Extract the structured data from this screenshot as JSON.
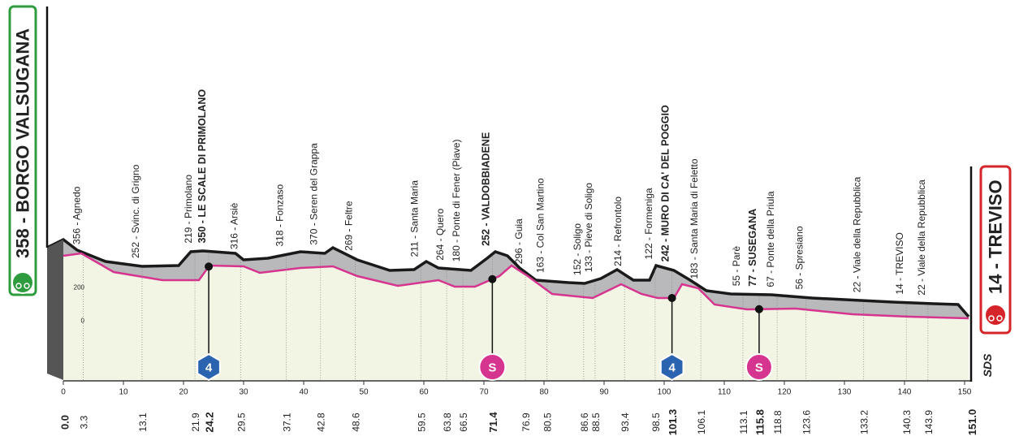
{
  "start": {
    "label": "358 - BORGO VALSUGANA",
    "km": "0.0"
  },
  "finish": {
    "label": "14 - TREVISO",
    "km": "151.0"
  },
  "waypoints": [
    {
      "label": "356 - Agnedo",
      "km": "3.3"
    },
    {
      "label": "252 - Svinc. di Grigno",
      "km": "13.1"
    },
    {
      "label": "219 - Primolano",
      "km": "21.9"
    },
    {
      "label": "350 - LE SCALE DI PRIMOLANO",
      "km": "24.2",
      "badge": {
        "text": "4",
        "color": "#2a63b0"
      }
    },
    {
      "label": "316 - Arsiè",
      "km": "29.5"
    },
    {
      "label": "318 - Fonzaso",
      "km": "37.1"
    },
    {
      "label": "370 - Seren del Grappa",
      "km": "42.8"
    },
    {
      "label": "269 - Feltre",
      "km": "48.6"
    },
    {
      "label": "211 - Santa Maria",
      "km": "59.5"
    },
    {
      "label": "264 - Quero",
      "km": "63.8"
    },
    {
      "label": "180 - Ponte di Fener (Piave)",
      "km": "66.5"
    },
    {
      "label": "252 - VALDOBBIADENE",
      "km": "71.4",
      "badge": {
        "text": "S",
        "color": "#d6358f"
      }
    },
    {
      "label": "296 - Guia",
      "km": "76.9"
    },
    {
      "label": "163 - Col San Martino",
      "km": "80.5"
    },
    {
      "label": "152 - Soligo",
      "km": "86.6"
    },
    {
      "label": "133 - Pieve di Soligo",
      "km": "88.5"
    },
    {
      "label": "214 - Refrontolo",
      "km": "93.4"
    },
    {
      "label": "122 - Formeniga",
      "km": "98.5"
    },
    {
      "label": "242 - MURO DI CA' DEL POGGIO",
      "km": "101.3",
      "badge": {
        "text": "4",
        "color": "#2a63b0"
      }
    },
    {
      "label": "183 - Santa Maria di Feletto",
      "km": "106.1"
    },
    {
      "label": "55 - Parè",
      "km": "113.1"
    },
    {
      "label": "77 - SUSEGANA",
      "km": "115.8",
      "badge": {
        "text": "S",
        "color": "#d6358f"
      }
    },
    {
      "label": "67 - Ponte della Priula",
      "km": "118.8"
    },
    {
      "label": "56 - Spresiano",
      "km": "123.6"
    },
    {
      "label": "22 - Viale della Repubblica",
      "km": "133.2"
    },
    {
      "label": "14 - TREVISO",
      "km": "140.3"
    },
    {
      "label": "22 - Viale della Repubblica",
      "km": "143.9"
    }
  ],
  "km_axis": [
    "0",
    "10",
    "20",
    "30",
    "40",
    "50",
    "60",
    "70",
    "80",
    "90",
    "100",
    "110",
    "120",
    "130",
    "140",
    "150"
  ],
  "altitude_axis": [
    "200",
    "0"
  ],
  "logo": "SDS"
}
